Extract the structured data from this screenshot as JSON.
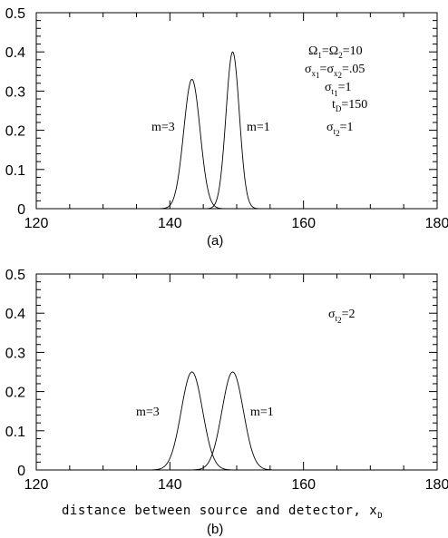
{
  "chart_data": [
    {
      "type": "line",
      "panel_label": "(a)",
      "xlim": [
        120,
        180
      ],
      "ylim": [
        0,
        0.5
      ],
      "x_ticks": [
        120,
        140,
        160,
        180
      ],
      "y_ticks": [
        0,
        0.1,
        0.2,
        0.3,
        0.4,
        0.5
      ],
      "x_tick_labels": [
        "120",
        "140",
        "160",
        "180"
      ],
      "y_tick_labels": [
        "0",
        "0.1",
        "0.2",
        "0.3",
        "0.4",
        "0.5"
      ],
      "xlabel": "",
      "series": [
        {
          "name": "m=3",
          "peak_x": 143.3,
          "peak_y": 0.33,
          "sigma": 1.22
        },
        {
          "name": "m=1",
          "peak_x": 149.4,
          "peak_y": 0.4,
          "sigma": 1.0
        }
      ],
      "annotations": {
        "omega": {
          "a": "Ω",
          "s1": "1",
          "b": "=Ω",
          "s2": "2",
          "c": "=10"
        },
        "sigmax": {
          "a": "σ",
          "s1": "x",
          "ss1": "1",
          "b": "=σ",
          "s2": "x",
          "ss2": "2",
          "c": "=.05"
        },
        "sigmat1": {
          "a": "σ",
          "s1": "t",
          "ss1": "1",
          "c": "=1"
        },
        "tD": {
          "a": "t",
          "s1": "D",
          "c": "=150"
        },
        "sigmat2": {
          "a": "σ",
          "s1": "t",
          "ss1": "2",
          "c": "=1"
        }
      }
    },
    {
      "type": "line",
      "panel_label": "(b)",
      "xlim": [
        120,
        180
      ],
      "ylim": [
        0,
        0.5
      ],
      "x_ticks": [
        120,
        140,
        160,
        180
      ],
      "y_ticks": [
        0,
        0.1,
        0.2,
        0.3,
        0.4,
        0.5
      ],
      "x_tick_labels": [
        "120",
        "140",
        "160",
        "180"
      ],
      "y_tick_labels": [
        "0",
        "0.1",
        "0.2",
        "0.3",
        "0.4",
        "0.5"
      ],
      "xlabel": {
        "text": "distance between source and detector, x",
        "sub": "D"
      },
      "series": [
        {
          "name": "m=3",
          "peak_x": 143.3,
          "peak_y": 0.25,
          "sigma": 1.6
        },
        {
          "name": "m=1",
          "peak_x": 149.4,
          "peak_y": 0.25,
          "sigma": 1.6
        }
      ],
      "annotations": {
        "sigmat2": {
          "a": "σ",
          "s1": "t",
          "ss1": "2",
          "c": "=2"
        }
      }
    }
  ]
}
